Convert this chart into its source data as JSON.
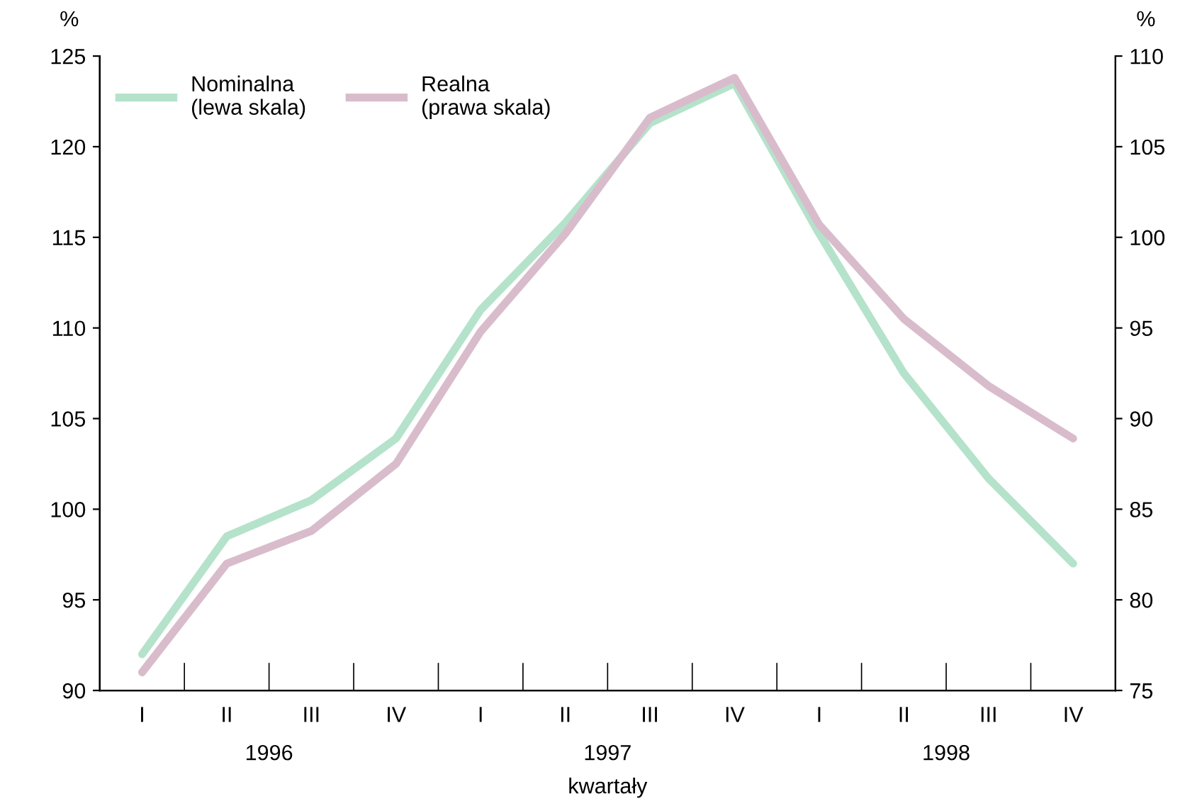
{
  "chart_data": {
    "type": "line",
    "categories": [
      "I",
      "II",
      "III",
      "IV",
      "I",
      "II",
      "III",
      "IV",
      "I",
      "II",
      "III",
      "IV"
    ],
    "series": [
      {
        "name": "Nominalna\n(lewa skala)",
        "color": "#b5e2cb",
        "values": [
          92.0,
          98.5,
          100.5,
          103.9,
          111.0,
          115.8,
          121.3,
          123.5,
          115.2,
          107.5,
          101.7,
          97.0
        ]
      },
      {
        "name": "Realna\n(prawa skala)",
        "color": "#d9bccb",
        "axis": "y2",
        "values": [
          76.0,
          82.0,
          83.8,
          87.5,
          94.8,
          100.2,
          106.6,
          108.8,
          100.7,
          95.5,
          91.8,
          88.9
        ]
      }
    ],
    "ylabel": "%",
    "y2label": "%",
    "xlabel": "kwartały",
    "annotations": [
      "1996",
      "1997",
      "1998"
    ],
    "ylim": [
      90,
      125
    ],
    "yticks": [
      90,
      95,
      100,
      105,
      110,
      115,
      120,
      125
    ],
    "y2lim": [
      75,
      110
    ],
    "y2ticks": [
      75,
      80,
      85,
      90,
      95,
      100,
      105,
      110
    ],
    "grid": false,
    "legend": "top left",
    "marker": "none",
    "line_style": "solid"
  }
}
